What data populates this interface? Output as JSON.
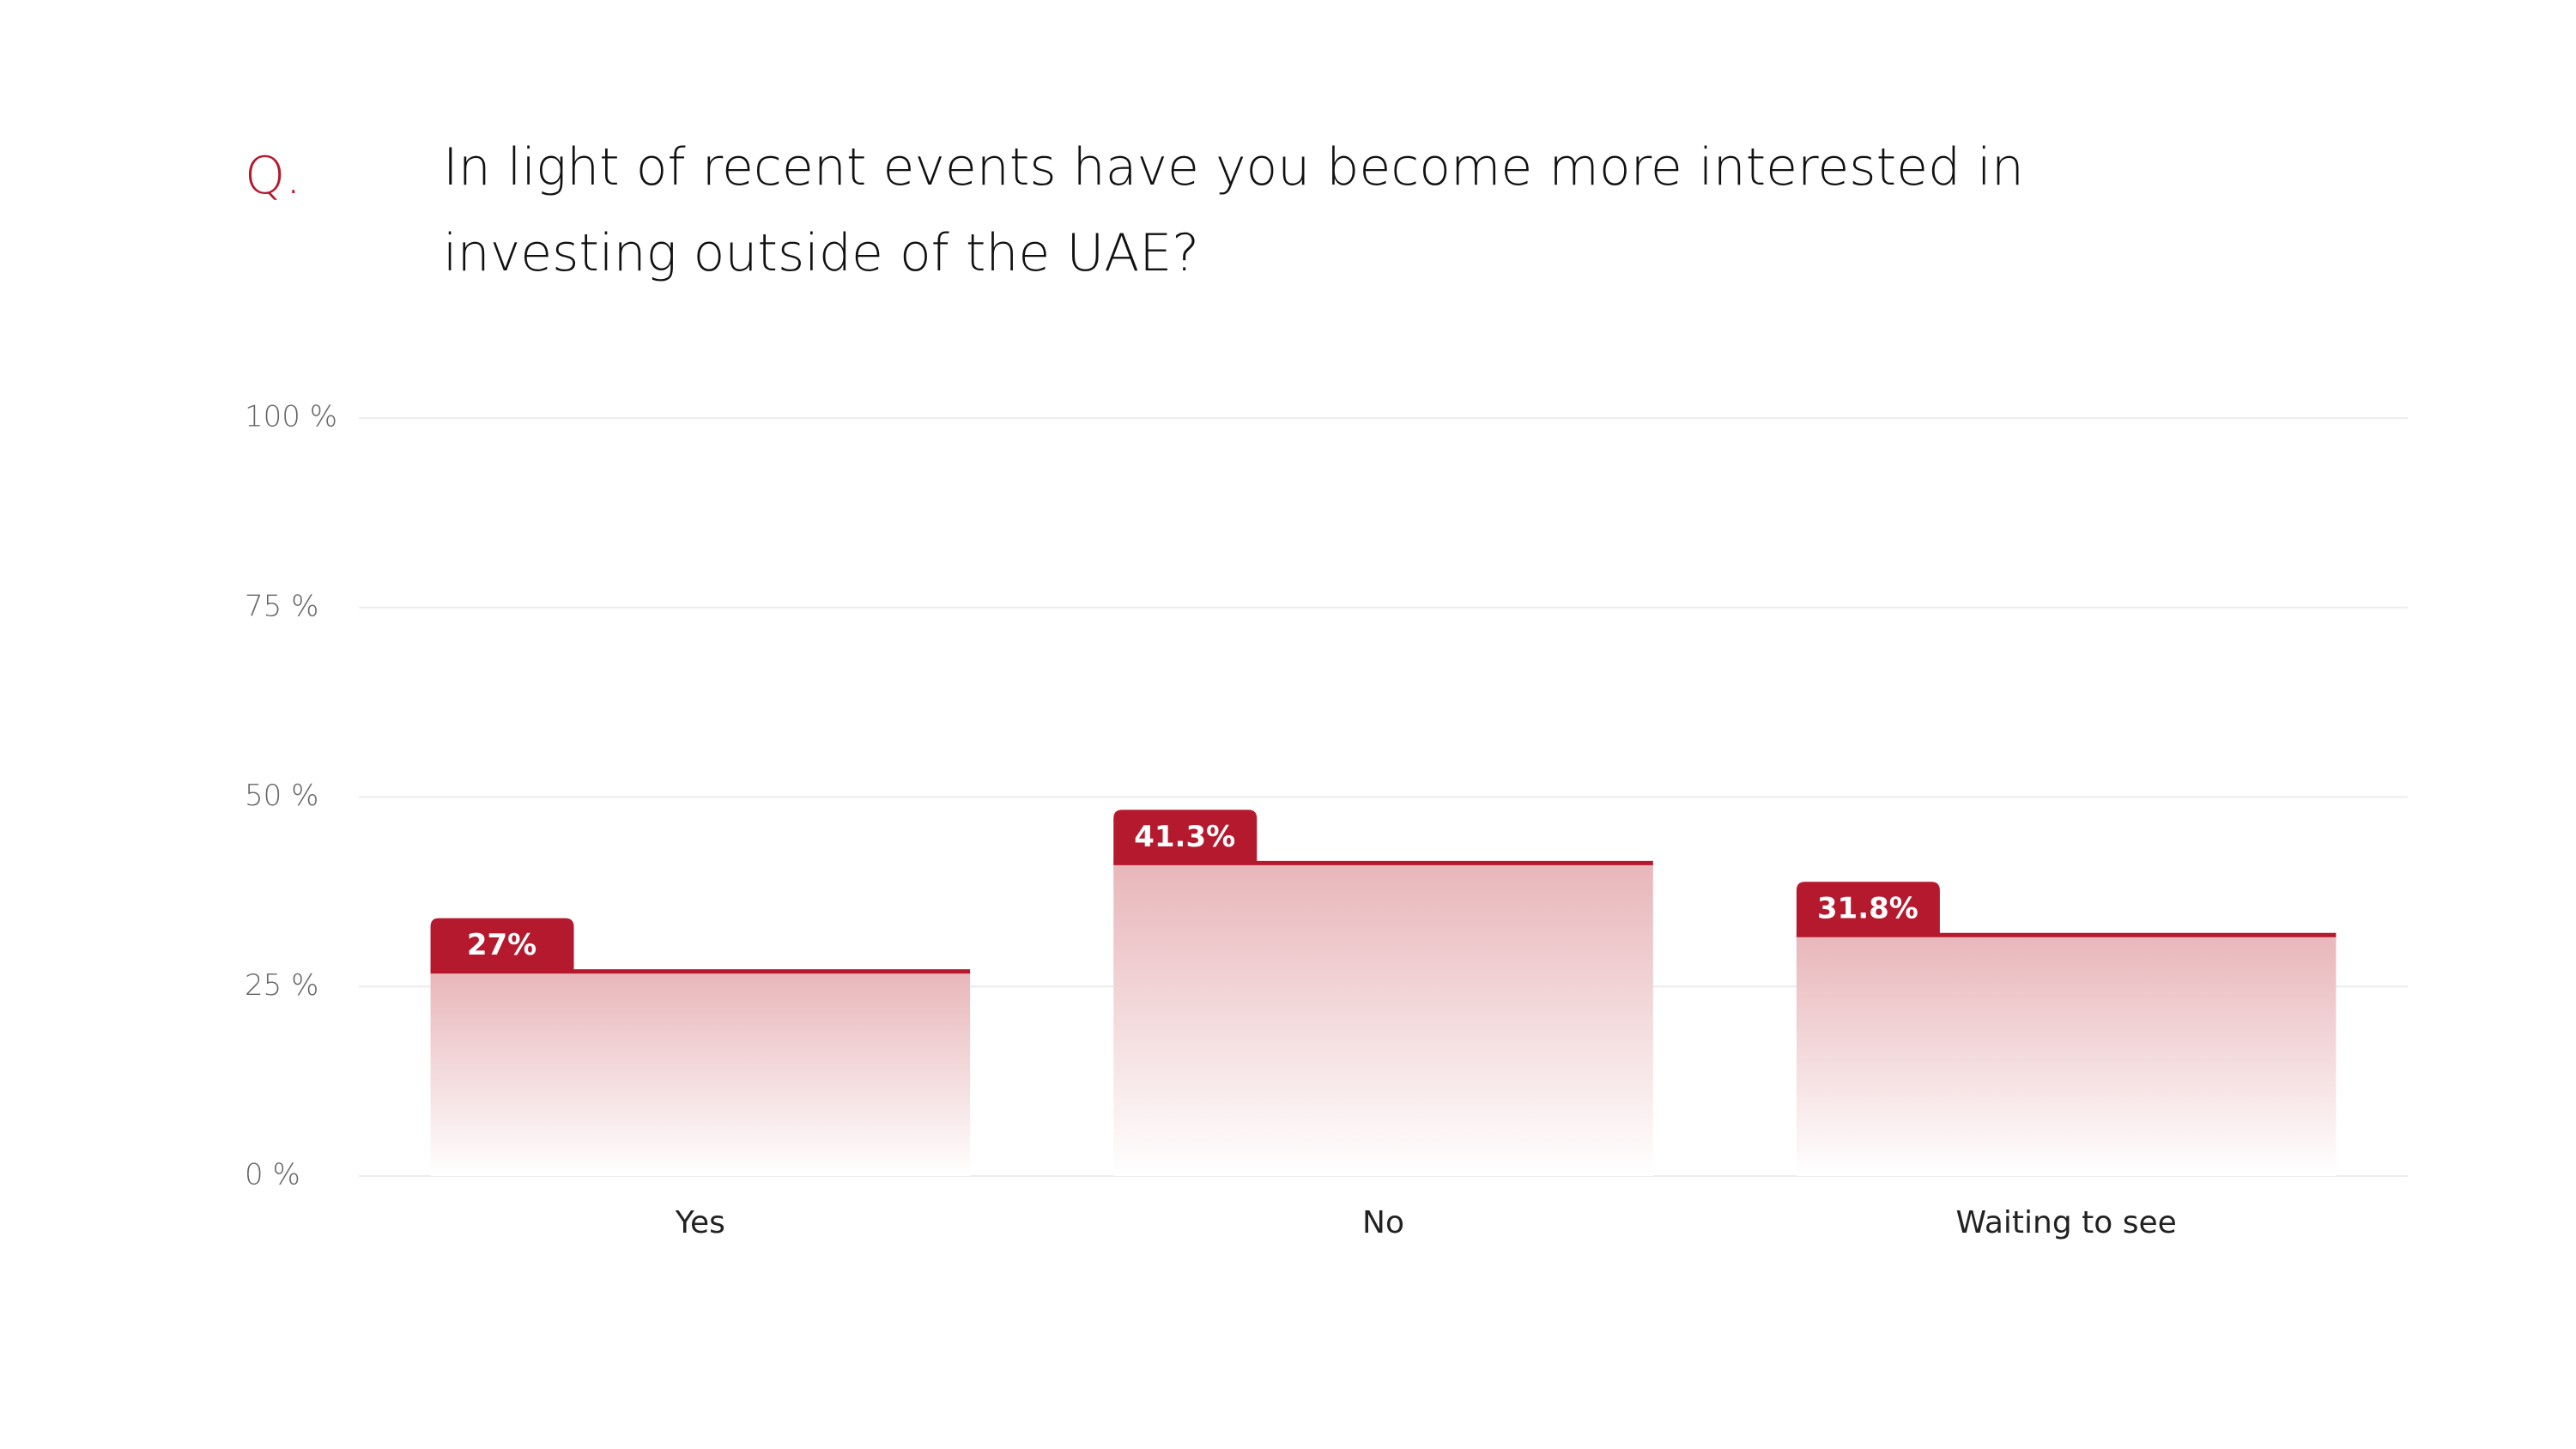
{
  "chart_data": {
    "type": "bar",
    "question_marker": "Q.",
    "title": "In light of recent events have you become more interested in investing outside of the UAE?",
    "categories": [
      "Yes",
      "No",
      "Waiting to see"
    ],
    "values": [
      27,
      41.3,
      31.8
    ],
    "value_labels": [
      "27%",
      "41.3%",
      "31.8%"
    ],
    "color": "#b5192e",
    "ylim": [
      0,
      100
    ],
    "yticks": [
      {
        "value": 0,
        "label": "0 %"
      },
      {
        "value": 25,
        "label": "25 %"
      },
      {
        "value": 50,
        "label": "50 %"
      },
      {
        "value": 75,
        "label": "75 %"
      },
      {
        "value": 100,
        "label": "100 %"
      }
    ],
    "grid": true
  }
}
